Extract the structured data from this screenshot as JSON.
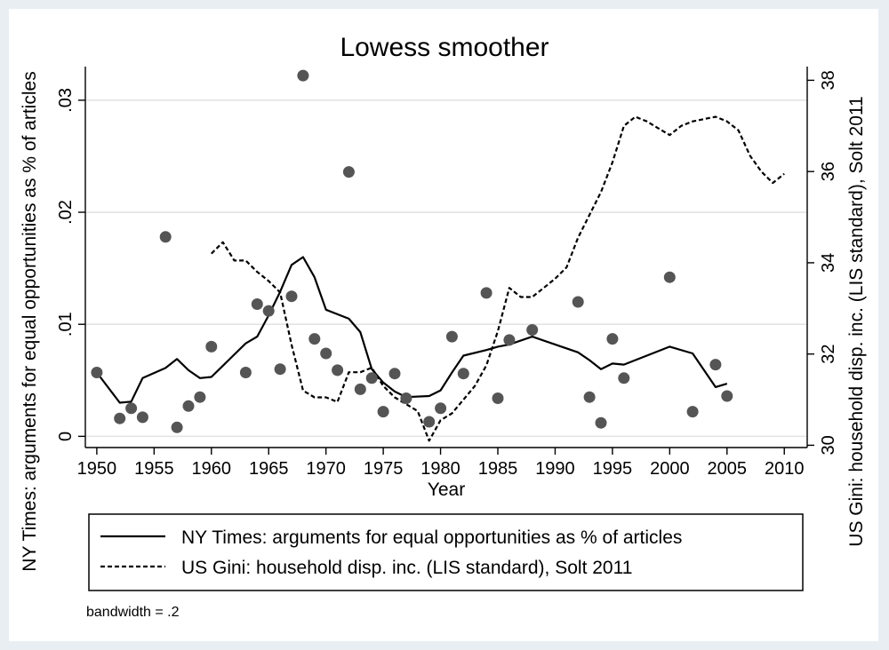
{
  "chart_data": {
    "type": "scatter",
    "title": "Lowess smoother",
    "xlabel": "Year",
    "ylabel_left": "NY Times: arguments for equal opportunities as % of articles",
    "ylabel_right": "US Gini: household disp. inc. (LIS standard), Solt 2011",
    "note": "bandwidth = .2",
    "grid": true,
    "legend_placement": "bottom",
    "xlim": [
      1949,
      2012
    ],
    "ylim_left": [
      -0.001,
      0.033
    ],
    "ylim_right": [
      29.95,
      38.3
    ],
    "x_ticks": [
      1950,
      1955,
      1960,
      1965,
      1970,
      1975,
      1980,
      1985,
      1990,
      1995,
      2000,
      2005,
      2010
    ],
    "x_tick_labels": [
      "1950",
      "1955",
      "1960",
      "1965",
      "1970",
      "1975",
      "1980",
      "1985",
      "1990",
      "1995",
      "2000",
      "2005",
      "2010"
    ],
    "y_left_ticks": [
      0,
      0.01,
      0.02,
      0.03
    ],
    "y_left_tick_labels": [
      "0",
      ".01",
      ".02",
      ".03"
    ],
    "y_right_ticks": [
      30,
      32,
      34,
      36,
      38
    ],
    "y_right_tick_labels": [
      "30",
      "32",
      "34",
      "36",
      "38"
    ],
    "scatter_points": {
      "axis": "left",
      "color": "#555555",
      "points": [
        [
          1950,
          0.0057
        ],
        [
          1952,
          0.0016
        ],
        [
          1953,
          0.0025
        ],
        [
          1954,
          0.0017
        ],
        [
          1956,
          0.0178
        ],
        [
          1957,
          0.0008
        ],
        [
          1958,
          0.0027
        ],
        [
          1959,
          0.0035
        ],
        [
          1960,
          0.008
        ],
        [
          1963,
          0.0057
        ],
        [
          1964,
          0.0118
        ],
        [
          1965,
          0.0112
        ],
        [
          1966,
          0.006
        ],
        [
          1967,
          0.0125
        ],
        [
          1968,
          0.0322
        ],
        [
          1969,
          0.0087
        ],
        [
          1970,
          0.0074
        ],
        [
          1971,
          0.0059
        ],
        [
          1972,
          0.0236
        ],
        [
          1973,
          0.0042
        ],
        [
          1974,
          0.0052
        ],
        [
          1975,
          0.0022
        ],
        [
          1976,
          0.0056
        ],
        [
          1977,
          0.0034
        ],
        [
          1979,
          0.0013
        ],
        [
          1980,
          0.0025
        ],
        [
          1981,
          0.0089
        ],
        [
          1982,
          0.0056
        ],
        [
          1984,
          0.0128
        ],
        [
          1985,
          0.0034
        ],
        [
          1986,
          0.0086
        ],
        [
          1988,
          0.0095
        ],
        [
          1992,
          0.012
        ],
        [
          1993,
          0.0035
        ],
        [
          1994,
          0.0012
        ],
        [
          1995,
          0.0087
        ],
        [
          1996,
          0.0052
        ],
        [
          2000,
          0.0142
        ],
        [
          2002,
          0.0022
        ],
        [
          2004,
          0.0064
        ],
        [
          2005,
          0.0036
        ]
      ]
    },
    "series": [
      {
        "name": "NY Times: arguments for equal opportunities as % of articles",
        "axis": "left",
        "style": "solid",
        "color": "#000000",
        "x": [
          1950,
          1952,
          1953,
          1954,
          1956,
          1957,
          1958,
          1959,
          1960,
          1963,
          1964,
          1965,
          1966,
          1967,
          1968,
          1969,
          1970,
          1971,
          1972,
          1973,
          1974,
          1975,
          1976,
          1977,
          1979,
          1980,
          1981,
          1982,
          1984,
          1985,
          1986,
          1988,
          1992,
          1993,
          1994,
          1995,
          1996,
          2000,
          2002,
          2004,
          2005
        ],
        "y": [
          0.0057,
          0.003,
          0.0031,
          0.0052,
          0.0061,
          0.0069,
          0.0059,
          0.0052,
          0.0053,
          0.0083,
          0.0089,
          0.0108,
          0.0129,
          0.0153,
          0.016,
          0.0142,
          0.0113,
          0.0109,
          0.0105,
          0.0093,
          0.006,
          0.0048,
          0.004,
          0.0035,
          0.0036,
          0.0041,
          0.0057,
          0.0072,
          0.0077,
          0.008,
          0.0082,
          0.0089,
          0.0075,
          0.0068,
          0.006,
          0.0065,
          0.0064,
          0.008,
          0.0074,
          0.0044,
          0.0047
        ]
      },
      {
        "name": "US Gini: household disp. inc. (LIS standard), Solt 2011",
        "axis": "right",
        "style": "dashed",
        "color": "#000000",
        "x": [
          1960,
          1961,
          1962,
          1963,
          1964,
          1965,
          1966,
          1967,
          1968,
          1969,
          1970,
          1971,
          1972,
          1973,
          1974,
          1975,
          1976,
          1977,
          1978,
          1979,
          1980,
          1981,
          1982,
          1983,
          1984,
          1985,
          1986,
          1987,
          1988,
          1989,
          1990,
          1991,
          1992,
          1993,
          1994,
          1995,
          1996,
          1997,
          1998,
          1999,
          2000,
          2001,
          2002,
          2003,
          2004,
          2005,
          2006,
          2007,
          2008,
          2009,
          2010
        ],
        "y": [
          34.2,
          34.45,
          34.05,
          34.05,
          33.8,
          33.6,
          33.35,
          32.2,
          31.2,
          31.05,
          31.05,
          30.95,
          31.6,
          31.6,
          31.7,
          31.3,
          31.05,
          30.9,
          30.75,
          30.1,
          30.55,
          30.7,
          31.0,
          31.3,
          31.75,
          32.5,
          33.45,
          33.25,
          33.25,
          33.45,
          33.65,
          33.9,
          34.55,
          35.05,
          35.55,
          36.2,
          37.0,
          37.2,
          37.1,
          36.95,
          36.8,
          37.0,
          37.1,
          37.15,
          37.2,
          37.1,
          36.9,
          36.35,
          36.0,
          35.75,
          35.95
        ]
      }
    ]
  }
}
